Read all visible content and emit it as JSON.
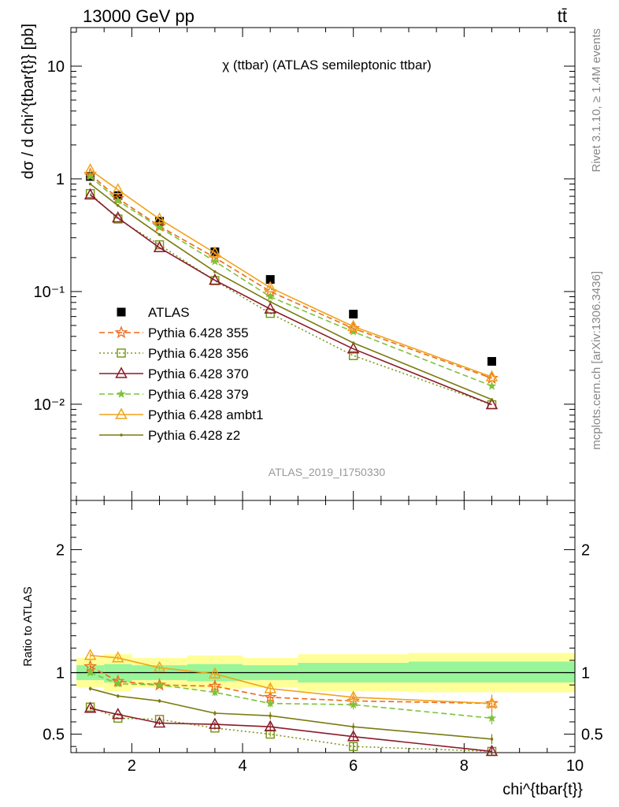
{
  "header": {
    "left": "13000 GeV pp",
    "right": "tt̄"
  },
  "side_labels": {
    "rivet": "Rivet 3.1.10, ≥ 1.4M events",
    "mcplots": "mcplots.cern.ch [arXiv:1306.3436]"
  },
  "chart_data": [
    {
      "type": "line",
      "title": "χ (ttbar) (ATLAS semileptonic ttbar)",
      "ylabel": "dσ / d chi^{tbar{t}} [pb]",
      "yscale": "log",
      "ylim": [
        0.0014,
        22
      ],
      "xlim": [
        0.9,
        10.0
      ],
      "ytick_labels": [
        "10⁻²",
        "10⁻¹",
        "1",
        "10"
      ],
      "watermark": "ATLAS_2019_I1750330",
      "legend_position": "left-middle",
      "series": [
        {
          "name": "ATLAS",
          "color": "#000000",
          "marker": "square-filled",
          "line": "none",
          "x": [
            1.25,
            1.75,
            2.5,
            3.5,
            4.5,
            6.0,
            8.5
          ],
          "y": [
            1.05,
            0.71,
            0.42,
            0.225,
            0.128,
            0.063,
            0.024
          ]
        },
        {
          "name": "Pythia 6.428 355",
          "color": "#ee6a1a",
          "marker": "star-open",
          "line": "dashed",
          "x": [
            1.25,
            1.75,
            2.5,
            3.5,
            4.5,
            6.0,
            8.5
          ],
          "y": [
            1.1,
            0.67,
            0.38,
            0.2,
            0.1,
            0.047,
            0.017
          ]
        },
        {
          "name": "Pythia 6.428 356",
          "color": "#7a9a1a",
          "marker": "square-open",
          "line": "dotted",
          "x": [
            1.25,
            1.75,
            2.5,
            3.5,
            4.5,
            6.0,
            8.5
          ],
          "y": [
            0.74,
            0.44,
            0.26,
            0.125,
            0.064,
            0.027,
            0.0099
          ]
        },
        {
          "name": "Pythia 6.428 370",
          "color": "#8a1a2a",
          "marker": "triangle-open",
          "line": "solid",
          "x": [
            1.25,
            1.75,
            2.5,
            3.5,
            4.5,
            6.0,
            8.5
          ],
          "y": [
            0.72,
            0.45,
            0.245,
            0.126,
            0.07,
            0.031,
            0.0099
          ]
        },
        {
          "name": "Pythia 6.428 379",
          "color": "#7ec23a",
          "marker": "star-filled",
          "line": "dashed",
          "x": [
            1.25,
            1.75,
            2.5,
            3.5,
            4.5,
            6.0,
            8.5
          ],
          "y": [
            1.05,
            0.64,
            0.37,
            0.185,
            0.09,
            0.044,
            0.0145
          ]
        },
        {
          "name": "Pythia 6.428 ambt1",
          "color": "#f0a41a",
          "marker": "triangle-open",
          "line": "solid",
          "x": [
            1.25,
            1.75,
            2.5,
            3.5,
            4.5,
            6.0,
            8.5
          ],
          "y": [
            1.2,
            0.8,
            0.44,
            0.22,
            0.108,
            0.049,
            0.0175
          ]
        },
        {
          "name": "Pythia 6.428 z2",
          "color": "#7a7a10",
          "marker": "dot",
          "line": "solid",
          "x": [
            1.25,
            1.75,
            2.5,
            3.5,
            4.5,
            6.0,
            8.5
          ],
          "y": [
            0.9,
            0.58,
            0.32,
            0.15,
            0.081,
            0.035,
            0.011
          ]
        }
      ]
    },
    {
      "type": "line",
      "xlabel": "chi^{tbar{t}}",
      "ylabel": "Ratio to ATLAS",
      "ylim": [
        0.35,
        2.4
      ],
      "xlim": [
        0.9,
        10.0
      ],
      "x_ticks": [
        2,
        4,
        6,
        8,
        10
      ],
      "y_ticks": [
        0.5,
        1,
        2
      ],
      "bins": [
        {
          "lo": 1.0,
          "hi": 1.5,
          "inner": [
            0.94,
            1.06
          ],
          "outer": [
            0.88,
            1.12
          ]
        },
        {
          "lo": 1.5,
          "hi": 2.0,
          "inner": [
            0.92,
            1.07
          ],
          "outer": [
            0.85,
            1.15
          ]
        },
        {
          "lo": 2.0,
          "hi": 3.0,
          "inner": [
            0.94,
            1.06
          ],
          "outer": [
            0.88,
            1.12
          ]
        },
        {
          "lo": 3.0,
          "hi": 4.0,
          "inner": [
            0.93,
            1.07
          ],
          "outer": [
            0.87,
            1.14
          ]
        },
        {
          "lo": 4.0,
          "hi": 5.0,
          "inner": [
            0.94,
            1.06
          ],
          "outer": [
            0.88,
            1.12
          ]
        },
        {
          "lo": 5.0,
          "hi": 7.0,
          "inner": [
            0.92,
            1.08
          ],
          "outer": [
            0.85,
            1.15
          ]
        },
        {
          "lo": 7.0,
          "hi": 10.0,
          "inner": [
            0.92,
            1.09
          ],
          "outer": [
            0.84,
            1.16
          ]
        }
      ],
      "series": [
        {
          "name": "Pythia 6.428 355",
          "y": [
            1.05,
            0.93,
            0.9,
            0.89,
            0.8,
            0.77,
            0.75
          ],
          "err": [
            0.02,
            0.02,
            0.02,
            0.03,
            0.03,
            0.04,
            0.07
          ]
        },
        {
          "name": "Pythia 6.428 356",
          "y": [
            0.72,
            0.63,
            0.62,
            0.55,
            0.5,
            0.4,
            0.36
          ],
          "err": [
            0.01,
            0.01,
            0.01,
            0.015,
            0.02,
            0.02,
            0.03
          ]
        },
        {
          "name": "Pythia 6.428 370",
          "y": [
            0.71,
            0.66,
            0.59,
            0.58,
            0.56,
            0.48,
            0.36
          ],
          "err": [
            0.01,
            0.01,
            0.015,
            0.02,
            0.03,
            0.03,
            0.03
          ]
        },
        {
          "name": "Pythia 6.428 379",
          "y": [
            1.0,
            0.91,
            0.9,
            0.84,
            0.75,
            0.74,
            0.63
          ],
          "err": [
            0.02,
            0.02,
            0.02,
            0.03,
            0.03,
            0.04,
            0.05
          ]
        },
        {
          "name": "Pythia 6.428 ambt1",
          "y": [
            1.14,
            1.12,
            1.04,
            0.99,
            0.87,
            0.8,
            0.75
          ],
          "err": [
            0.02,
            0.02,
            0.02,
            0.03,
            0.03,
            0.04,
            0.05
          ]
        },
        {
          "name": "Pythia 6.428 z2",
          "y": [
            0.87,
            0.81,
            0.77,
            0.67,
            0.65,
            0.56,
            0.46
          ],
          "err": [
            0.015,
            0.015,
            0.015,
            0.02,
            0.03,
            0.03,
            0.04
          ]
        }
      ]
    }
  ]
}
